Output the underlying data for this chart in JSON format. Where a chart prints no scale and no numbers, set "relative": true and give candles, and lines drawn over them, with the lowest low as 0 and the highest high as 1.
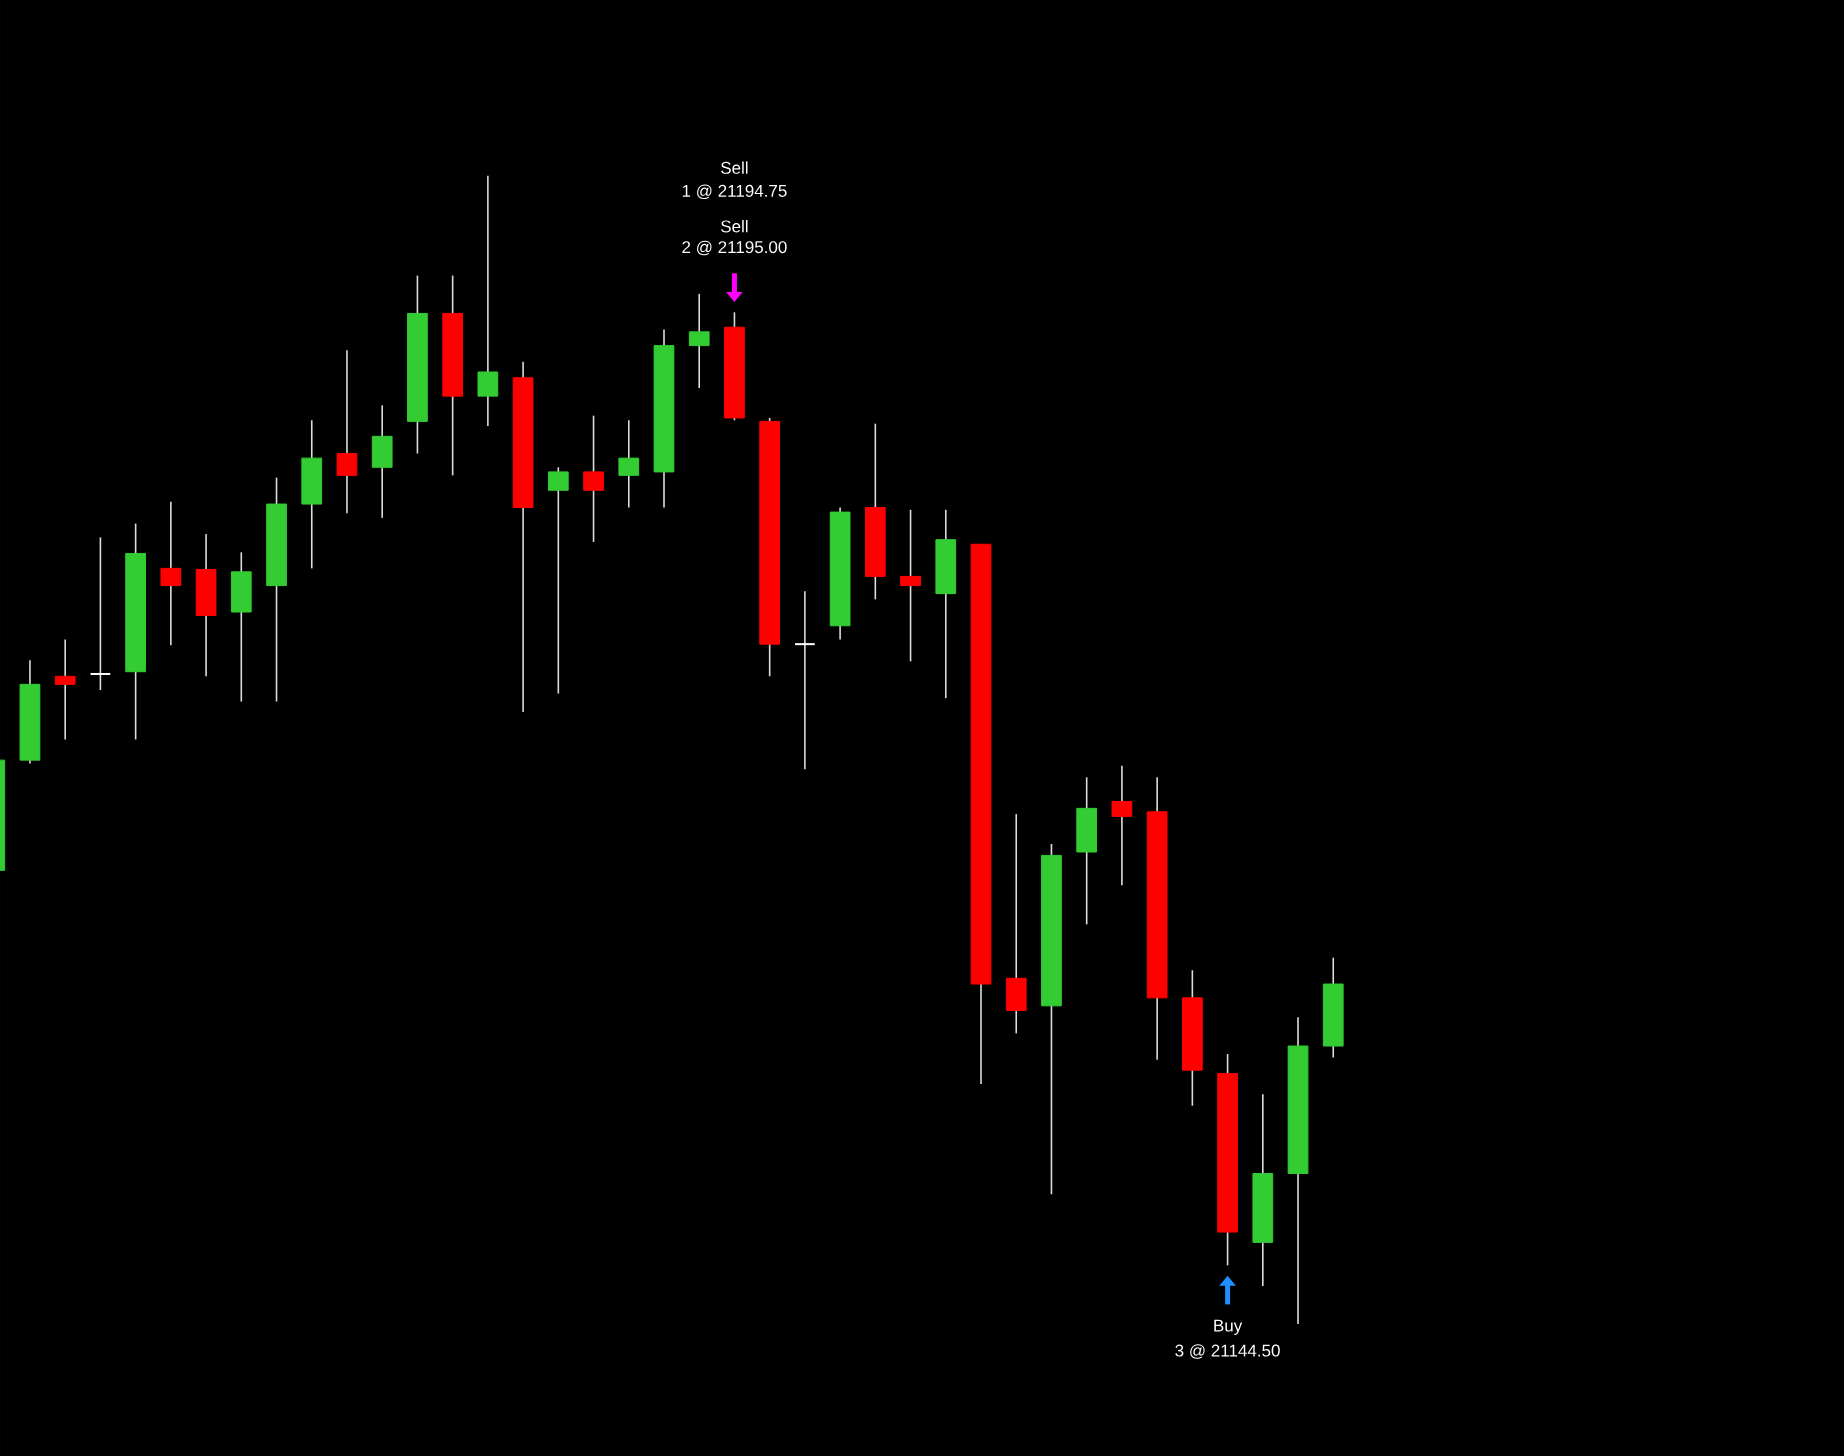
{
  "chart_data": {
    "type": "candlestick",
    "relative": true,
    "categories": [
      null,
      null,
      null,
      null,
      null,
      null,
      null,
      null,
      null,
      null,
      null,
      null,
      null,
      null,
      null,
      null,
      null,
      null,
      null,
      null,
      null,
      null,
      null,
      null,
      null,
      null,
      null,
      null,
      null,
      null,
      null,
      null,
      null,
      null,
      null,
      null,
      null,
      null,
      null
    ],
    "ohlc": [
      [
        0.395,
        0.491,
        0.394,
        0.491
      ],
      [
        0.491,
        0.578,
        0.488,
        0.557
      ],
      [
        0.564,
        0.596,
        0.509,
        0.557
      ],
      [
        0.566,
        0.685,
        0.552,
        0.566
      ],
      [
        0.568,
        0.697,
        0.509,
        0.671
      ],
      [
        0.658,
        0.716,
        0.591,
        0.643
      ],
      [
        0.657,
        0.688,
        0.564,
        0.617
      ],
      [
        0.62,
        0.672,
        0.542,
        0.655
      ],
      [
        0.643,
        0.737,
        0.542,
        0.714
      ],
      [
        0.714,
        0.787,
        0.658,
        0.754
      ],
      [
        0.758,
        0.848,
        0.706,
        0.739
      ],
      [
        0.746,
        0.8,
        0.702,
        0.773
      ],
      [
        0.786,
        0.913,
        0.758,
        0.88
      ],
      [
        0.88,
        0.913,
        0.739,
        0.808
      ],
      [
        0.808,
        1.0,
        0.782,
        0.829
      ],
      [
        0.824,
        0.838,
        0.533,
        0.711
      ],
      [
        0.726,
        0.746,
        0.549,
        0.742
      ],
      [
        0.742,
        0.791,
        0.681,
        0.726
      ],
      [
        0.739,
        0.787,
        0.711,
        0.754
      ],
      [
        0.742,
        0.866,
        0.711,
        0.852
      ],
      [
        0.852,
        0.897,
        0.815,
        0.864
      ],
      [
        0.868,
        0.881,
        0.787,
        0.789
      ],
      [
        0.786,
        0.789,
        0.564,
        0.592
      ],
      [
        0.592,
        0.638,
        0.483,
        0.592
      ],
      [
        0.608,
        0.711,
        0.596,
        0.707
      ],
      [
        0.711,
        0.784,
        0.631,
        0.651
      ],
      [
        0.651,
        0.709,
        0.577,
        0.643
      ],
      [
        0.636,
        0.709,
        0.545,
        0.683
      ],
      [
        0.679,
        0.679,
        0.209,
        0.296
      ],
      [
        0.301,
        0.444,
        0.253,
        0.273
      ],
      [
        0.277,
        0.418,
        0.113,
        0.408
      ],
      [
        0.411,
        0.476,
        0.348,
        0.449
      ],
      [
        0.455,
        0.486,
        0.382,
        0.442
      ],
      [
        0.446,
        0.476,
        0.23,
        0.284
      ],
      [
        0.284,
        0.308,
        0.19,
        0.221
      ],
      [
        0.218,
        0.235,
        0.051,
        0.08
      ],
      [
        0.071,
        0.2,
        0.033,
        0.131
      ],
      [
        0.131,
        0.267,
        0.0,
        0.242
      ],
      [
        0.242,
        0.319,
        0.232,
        0.296
      ]
    ],
    "colors": [
      "#33cc33",
      "#33cc33",
      "#ff0000",
      "#ffffff",
      "#33cc33",
      "#ff0000",
      "#ff0000",
      "#33cc33",
      "#33cc33",
      "#33cc33",
      "#ff0000",
      "#33cc33",
      "#33cc33",
      "#ff0000",
      "#33cc33",
      "#ff0000",
      "#33cc33",
      "#ff0000",
      "#33cc33",
      "#33cc33",
      "#33cc33",
      "#ff0000",
      "#ff0000",
      "#ffffff",
      "#33cc33",
      "#ff0000",
      "#ff0000",
      "#33cc33",
      "#ff0000",
      "#ff0000",
      "#33cc33",
      "#33cc33",
      "#ff0000",
      "#ff0000",
      "#ff0000",
      "#ff0000",
      "#33cc33",
      "#33cc33",
      "#33cc33"
    ],
    "annotations": [
      "Sell",
      "1 @ 21194.75",
      "Sell",
      "2 @ 21195.00",
      "Buy",
      "3 @ 21144.50"
    ]
  }
}
